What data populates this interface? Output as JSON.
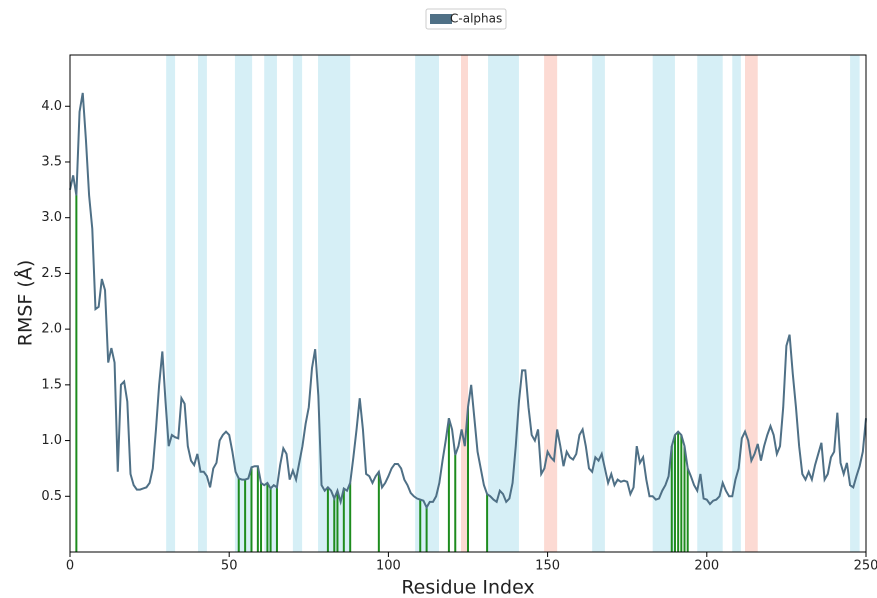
{
  "chart_data": {
    "type": "line",
    "xlabel": "Residue Index",
    "ylabel": "RMSF (Å)",
    "legend": "top",
    "x": [
      0,
      1,
      2,
      3,
      4,
      5,
      6,
      7,
      8,
      9,
      10,
      11,
      12,
      13,
      14,
      15,
      16,
      17,
      18,
      19,
      20,
      21,
      22,
      23,
      24,
      25,
      26,
      27,
      28,
      29,
      30,
      31,
      32,
      33,
      34,
      35,
      36,
      37,
      38,
      39,
      40,
      41,
      42,
      43,
      44,
      45,
      46,
      47,
      48,
      49,
      50,
      51,
      52,
      53,
      54,
      55,
      56,
      57,
      58,
      59,
      60,
      61,
      62,
      63,
      64,
      65,
      66,
      67,
      68,
      69,
      70,
      71,
      72,
      73,
      74,
      75,
      76,
      77,
      78,
      79,
      80,
      81,
      82,
      83,
      84,
      85,
      86,
      87,
      88,
      89,
      90,
      91,
      92,
      93,
      94,
      95,
      96,
      97,
      98,
      99,
      100,
      101,
      102,
      103,
      104,
      105,
      106,
      107,
      108,
      109,
      110,
      111,
      112,
      113,
      114,
      115,
      116,
      117,
      118,
      119,
      120,
      121,
      122,
      123,
      124,
      125,
      126,
      127,
      128,
      129,
      130,
      131,
      132,
      133,
      134,
      135,
      136,
      137,
      138,
      139,
      140,
      141,
      142,
      143,
      144,
      145,
      146,
      147,
      148,
      149,
      150,
      151,
      152,
      153,
      154,
      155,
      156,
      157,
      158,
      159,
      160,
      161,
      162,
      163,
      164,
      165,
      166,
      167,
      168,
      169,
      170,
      171,
      172,
      173,
      174,
      175,
      176,
      177,
      178,
      179,
      180,
      181,
      182,
      183,
      184,
      185,
      186,
      187,
      188,
      189,
      190,
      191,
      192,
      193,
      194,
      195,
      196,
      197,
      198,
      199,
      200,
      201,
      202,
      203,
      204,
      205,
      206,
      207,
      208,
      209,
      210,
      211,
      212,
      213,
      214,
      215,
      216,
      217,
      218,
      219,
      220,
      221,
      222,
      223,
      224,
      225,
      226,
      227,
      228,
      229,
      230,
      231,
      232,
      233,
      234,
      235,
      236,
      237,
      238,
      239,
      240,
      241,
      242,
      243,
      244,
      245,
      246,
      247,
      248,
      249,
      250
    ],
    "series": [
      {
        "name": "C-alphas",
        "color": "#4f7086",
        "values": [
          3.25,
          3.38,
          3.2,
          3.95,
          4.12,
          3.7,
          3.2,
          2.9,
          2.18,
          2.2,
          2.45,
          2.35,
          1.7,
          1.83,
          1.7,
          0.72,
          1.5,
          1.53,
          1.35,
          0.7,
          0.6,
          0.56,
          0.56,
          0.57,
          0.58,
          0.62,
          0.75,
          1.1,
          1.5,
          1.8,
          1.35,
          0.95,
          1.05,
          1.03,
          1.02,
          1.38,
          1.33,
          0.95,
          0.82,
          0.78,
          0.88,
          0.72,
          0.72,
          0.68,
          0.58,
          0.75,
          0.8,
          1.0,
          1.05,
          1.08,
          1.05,
          0.9,
          0.72,
          0.66,
          0.65,
          0.65,
          0.66,
          0.76,
          0.77,
          0.77,
          0.62,
          0.6,
          0.62,
          0.57,
          0.6,
          0.58,
          0.78,
          0.93,
          0.88,
          0.65,
          0.73,
          0.65,
          0.8,
          0.95,
          1.15,
          1.3,
          1.65,
          1.82,
          1.4,
          0.6,
          0.55,
          0.58,
          0.55,
          0.48,
          0.55,
          0.45,
          0.57,
          0.55,
          0.62,
          0.85,
          1.1,
          1.38,
          1.1,
          0.7,
          0.68,
          0.62,
          0.68,
          0.72,
          0.58,
          0.62,
          0.68,
          0.75,
          0.79,
          0.79,
          0.75,
          0.65,
          0.6,
          0.53,
          0.5,
          0.48,
          0.47,
          0.46,
          0.4,
          0.45,
          0.45,
          0.5,
          0.62,
          0.82,
          1.0,
          1.2,
          1.1,
          0.87,
          0.95,
          1.1,
          0.95,
          1.3,
          1.5,
          1.2,
          0.9,
          0.75,
          0.6,
          0.52,
          0.5,
          0.47,
          0.45,
          0.55,
          0.52,
          0.45,
          0.48,
          0.62,
          0.95,
          1.35,
          1.63,
          1.63,
          1.3,
          1.05,
          1.0,
          1.1,
          0.7,
          0.75,
          0.9,
          0.85,
          0.82,
          1.1,
          0.95,
          0.77,
          0.9,
          0.85,
          0.83,
          0.88,
          1.05,
          1.1,
          0.95,
          0.75,
          0.72,
          0.85,
          0.82,
          0.88,
          0.75,
          0.62,
          0.7,
          0.6,
          0.65,
          0.63,
          0.64,
          0.63,
          0.52,
          0.58,
          0.95,
          0.8,
          0.85,
          0.65,
          0.5,
          0.5,
          0.47,
          0.48,
          0.55,
          0.6,
          0.68,
          0.95,
          1.05,
          1.08,
          1.05,
          0.95,
          0.75,
          0.68,
          0.6,
          0.55,
          0.7,
          0.48,
          0.47,
          0.43,
          0.46,
          0.47,
          0.5,
          0.62,
          0.55,
          0.5,
          0.5,
          0.65,
          0.75,
          1.02,
          1.08,
          1.0,
          0.82,
          0.88,
          0.97,
          0.82,
          0.95,
          1.05,
          1.13,
          1.05,
          0.88,
          0.95,
          1.3,
          1.85,
          1.95,
          1.6,
          1.3,
          0.95,
          0.7,
          0.65,
          0.72,
          0.65,
          0.78,
          0.88,
          0.98,
          0.65,
          0.7,
          0.85,
          0.9,
          1.25,
          0.8,
          0.7,
          0.8,
          0.6,
          0.58,
          0.68,
          0.77,
          0.9,
          1.2
        ]
      }
    ],
    "contacts": [
      2,
      53,
      55,
      57,
      59,
      60,
      62,
      63,
      65,
      81,
      83,
      84,
      86,
      88,
      97,
      110,
      112,
      119,
      121,
      125,
      131,
      189,
      190,
      191,
      192,
      193,
      194
    ],
    "contact_color": "#1e8c1e",
    "shaded": [
      {
        "start": 30.2,
        "end": 33.0,
        "color": "#d6eff6"
      },
      {
        "start": 40.2,
        "end": 43.0,
        "color": "#d6eff6"
      },
      {
        "start": 51.8,
        "end": 57.2,
        "color": "#d6eff6"
      },
      {
        "start": 61.0,
        "end": 65.0,
        "color": "#d6eff6"
      },
      {
        "start": 70.0,
        "end": 72.9,
        "color": "#d6eff6"
      },
      {
        "start": 77.9,
        "end": 88.0,
        "color": "#d6eff6"
      },
      {
        "start": 108.4,
        "end": 115.9,
        "color": "#d6eff6"
      },
      {
        "start": 122.8,
        "end": 125.0,
        "color": "#fcdad3"
      },
      {
        "start": 131.3,
        "end": 141.0,
        "color": "#d6eff6"
      },
      {
        "start": 148.9,
        "end": 153.0,
        "color": "#fcdad3"
      },
      {
        "start": 164.0,
        "end": 168.0,
        "color": "#d6eff6"
      },
      {
        "start": 183.0,
        "end": 190.0,
        "color": "#d6eff6"
      },
      {
        "start": 197.0,
        "end": 205.0,
        "color": "#d6eff6"
      },
      {
        "start": 208.0,
        "end": 210.7,
        "color": "#d6eff6"
      },
      {
        "start": 212.0,
        "end": 216.0,
        "color": "#fcdad3"
      },
      {
        "start": 245.0,
        "end": 248.0,
        "color": "#d6eff6"
      }
    ],
    "xlim": [
      0,
      250
    ],
    "xticks": [
      0,
      50,
      100,
      150,
      200,
      250
    ],
    "ylim": [
      0,
      4.46
    ],
    "yticks": [
      0.5,
      1.0,
      1.5,
      2.0,
      2.5,
      3.0,
      3.5,
      4.0
    ]
  }
}
